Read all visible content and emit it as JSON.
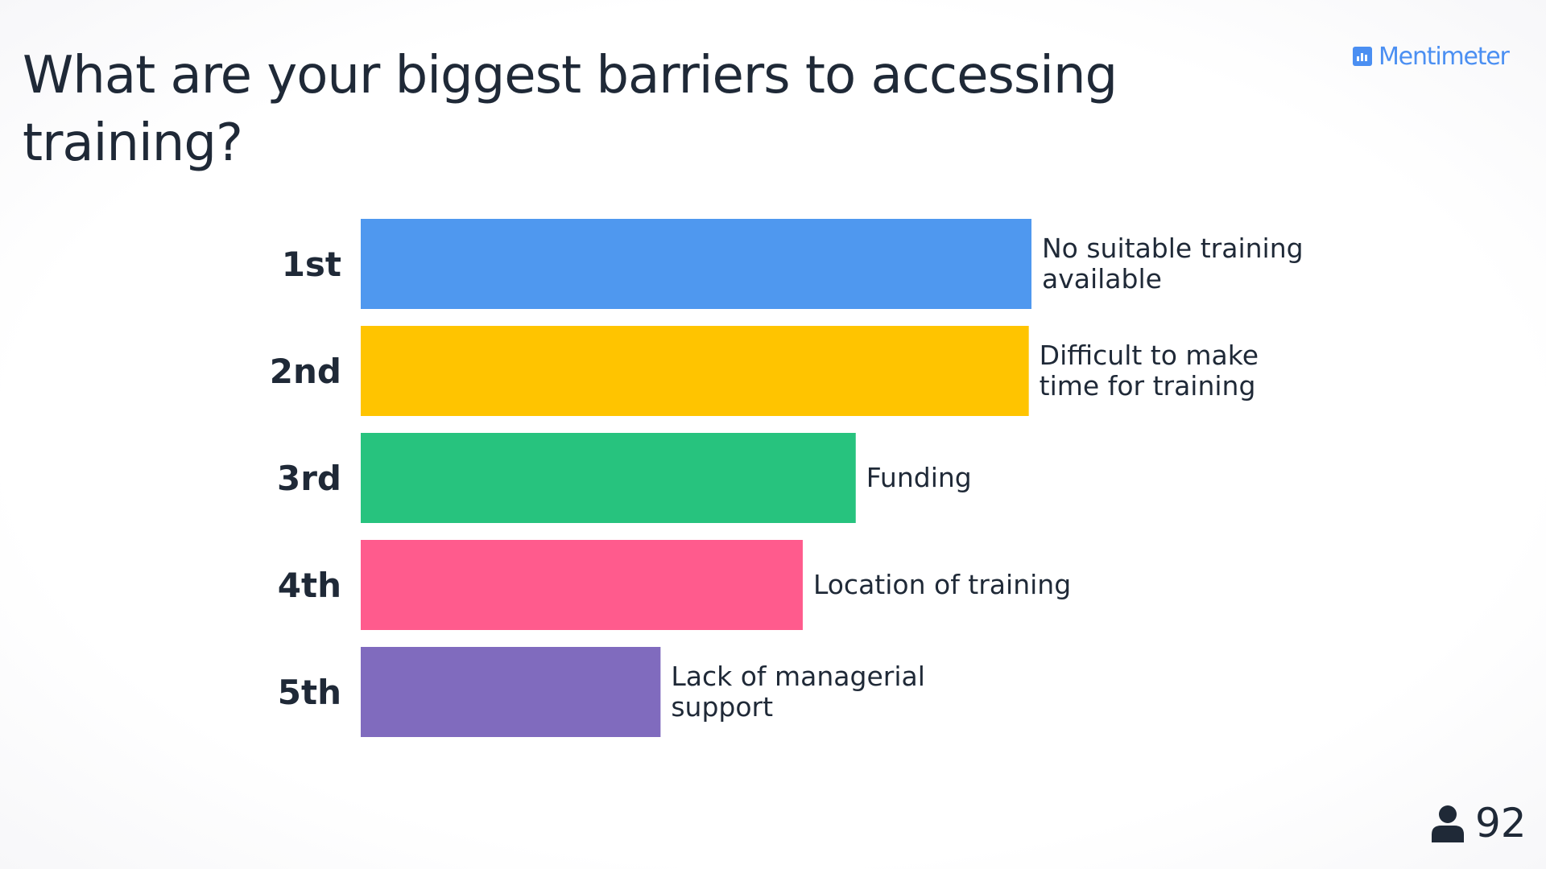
{
  "title": "What are your biggest barriers to accessing training?",
  "brand": {
    "name": "Mentimeter",
    "icon": "bar-chart-icon",
    "color": "#4b8ff2"
  },
  "responses": {
    "icon": "person-icon",
    "count": "92"
  },
  "chart_data": {
    "type": "bar",
    "orientation": "horizontal",
    "ranking": true,
    "categories": [
      "1st",
      "2nd",
      "3rd",
      "4th",
      "5th"
    ],
    "labels": [
      "No suitable training available",
      "Difficult to make time for training",
      "Funding",
      "Location of training",
      "Lack of managerial support"
    ],
    "values": [
      1.0,
      0.996,
      0.738,
      0.659,
      0.447
    ],
    "colors": [
      "#4f98ef",
      "#ffc400",
      "#27c37e",
      "#ff5b8d",
      "#806bbe"
    ],
    "legend": "none",
    "grid": false
  }
}
